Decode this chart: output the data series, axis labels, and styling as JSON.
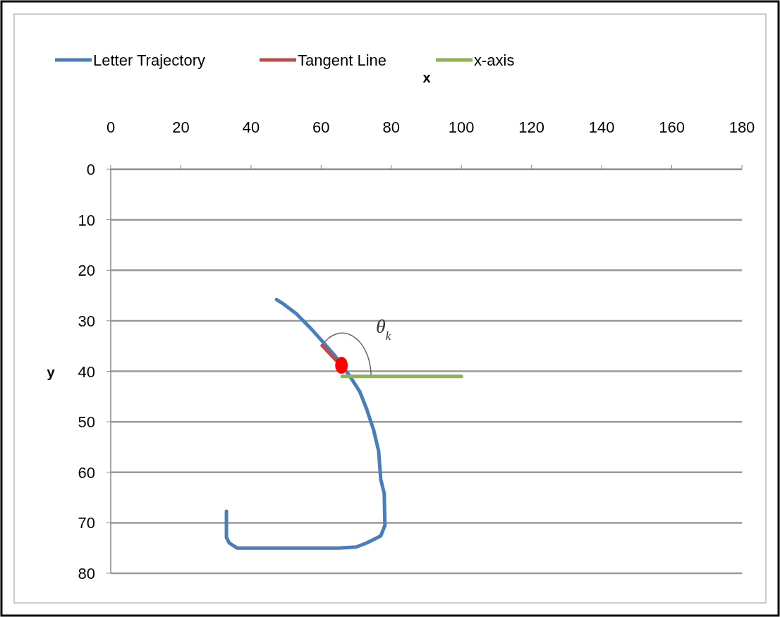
{
  "chart_data": {
    "type": "line",
    "xlabel": "x",
    "ylabel": "y",
    "xlim": [
      0,
      180
    ],
    "xticks": [
      0,
      20,
      40,
      60,
      80,
      100,
      120,
      140,
      160,
      180
    ],
    "ylim": [
      80,
      0
    ],
    "yticks": [
      0,
      10,
      20,
      30,
      40,
      50,
      60,
      70,
      80
    ],
    "grid": "y",
    "legend": "top left",
    "annotations": [
      "θ$_{k}$"
    ],
    "series": [
      {
        "name": "Letter Trajectory",
        "color": "#4a7ebb",
        "x": [
          47.3,
          48.9,
          52.9,
          56.9,
          60.5,
          64,
          68.4,
          71,
          73,
          75,
          76.4,
          77,
          78,
          78.2,
          77,
          73,
          70,
          65,
          36,
          33.8,
          33,
          33
        ],
        "values": [
          25.8,
          26.5,
          28.6,
          31.4,
          34.2,
          37,
          41.2,
          44,
          47.5,
          51.7,
          55.8,
          61.4,
          64.2,
          70.5,
          72.6,
          74,
          74.8,
          75,
          75,
          74,
          72.9,
          67.7
        ]
      },
      {
        "name": "Tangent Line",
        "color": "#be4b48",
        "x": [
          60.3,
          66
        ],
        "values": [
          34.9,
          39.1
        ]
      },
      {
        "name": "x-axis",
        "color": "#8cb453",
        "x": [
          66,
          100
        ],
        "values": [
          41,
          41
        ]
      },
      {
        "type": "scatter",
        "color": "#ff0000",
        "x": [
          65.8
        ],
        "values": [
          38.8
        ]
      }
    ]
  }
}
